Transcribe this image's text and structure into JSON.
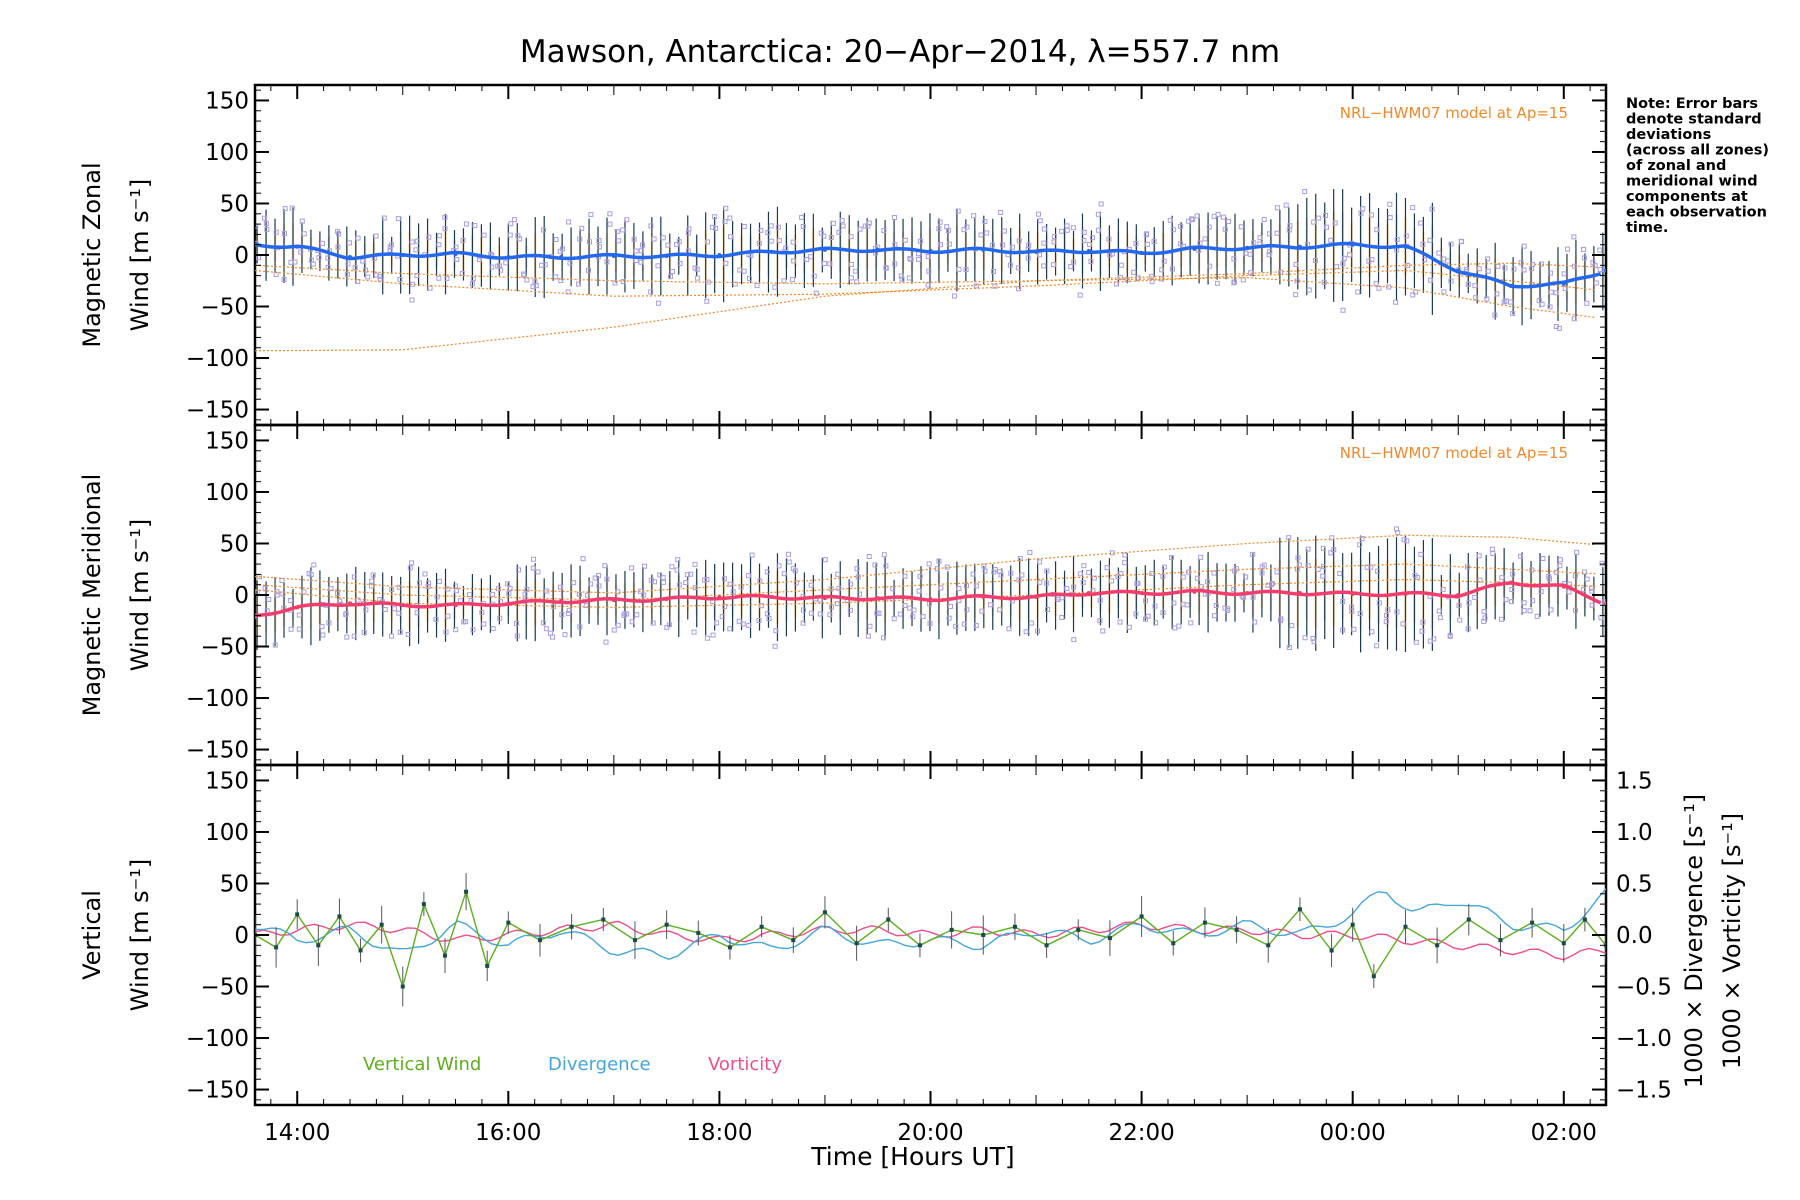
{
  "title": "Mawson, Antarctica: 20−Apr−2014, λ=557.7 nm",
  "note": [
    "Note: Error bars",
    "denote standard",
    "deviations",
    "(across all zones)",
    "of zonal and",
    "meridional wind",
    "components at",
    "each observation",
    "time."
  ],
  "colors": {
    "zonal": "#2468ee",
    "meridional": "#f23d6e",
    "vertical": "#5cae1e",
    "divergence": "#44a6d9",
    "vorticity": "#ee4f8c",
    "model": "#f0892a",
    "scatter": "#a89ee0",
    "errorbar": "#1a3a4a"
  },
  "x_axis": {
    "label": "Time [Hours UT]",
    "range_hours": [
      13.6,
      26.4
    ],
    "ticks": [
      {
        "hour": 14,
        "label": "14:00"
      },
      {
        "hour": 16,
        "label": "16:00"
      },
      {
        "hour": 18,
        "label": "18:00"
      },
      {
        "hour": 20,
        "label": "20:00"
      },
      {
        "hour": 22,
        "label": "22:00"
      },
      {
        "hour": 24,
        "label": "00:00"
      },
      {
        "hour": 26,
        "label": "02:00"
      }
    ]
  },
  "y_ticks": [
    "150",
    "100",
    "50",
    "0",
    "−50",
    "−100",
    "−150"
  ],
  "y_tick_values": [
    150,
    100,
    50,
    0,
    -50,
    -100,
    -150
  ],
  "right_axis": {
    "ticks": [
      "1.5",
      "1.0",
      "0.5",
      "0.0",
      "−0.5",
      "−1.0",
      "−1.5"
    ],
    "tick_values": [
      1.5,
      1.0,
      0.5,
      0.0,
      -0.5,
      -1.0,
      -1.5
    ],
    "divergence_label": "1000 × Divergence [s⁻¹]",
    "vorticity_label": "1000 × Vorticity [s⁻¹]"
  },
  "panels": [
    {
      "key": "zonal",
      "ylabel_top": "Magnetic Zonal",
      "ylabel_bottom": "Wind [m s⁻¹]",
      "model_label": "NRL−HWM07 model at Ap=15"
    },
    {
      "key": "meridional",
      "ylabel_top": "Magnetic Meridional",
      "ylabel_bottom": "Wind [m s⁻¹]",
      "model_label": "NRL−HWM07 model at Ap=15"
    },
    {
      "key": "vertical",
      "ylabel_top": "Vertical",
      "ylabel_bottom": "Wind [m s⁻¹]",
      "model_label": ""
    }
  ],
  "legend": {
    "vertical": "Vertical Wind",
    "divergence": "Divergence",
    "vorticity": "Vorticity"
  },
  "chart_data": [
    {
      "type": "line",
      "panel": "zonal",
      "ylabel": "Magnetic Zonal Wind [m s⁻¹]",
      "ylim": [
        -165,
        165
      ],
      "x_unit": "hours UT",
      "series": [
        {
          "name": "zonal",
          "x": [
            13.6,
            14.0,
            14.5,
            15.0,
            15.5,
            16.0,
            16.5,
            17.0,
            17.5,
            18.0,
            18.5,
            19.0,
            19.5,
            20.0,
            20.5,
            21.0,
            21.5,
            22.0,
            22.5,
            23.0,
            23.5,
            24.0,
            24.5,
            25.0,
            25.5,
            26.0,
            26.4
          ],
          "y": [
            10,
            8,
            -2,
            0,
            1,
            -2,
            -2,
            -1,
            -1,
            0,
            3,
            5,
            5,
            4,
            5,
            3,
            4,
            2,
            6,
            7,
            8,
            10,
            8,
            -15,
            -30,
            -28,
            -15
          ]
        }
      ],
      "model_curves": [
        {
          "x": [
            13.6,
            15.0,
            17.0,
            19.0,
            21.0,
            23.0,
            24.5,
            25.5,
            26.4
          ],
          "y": [
            -93,
            -92,
            -70,
            -40,
            -25,
            -22,
            -32,
            -50,
            -62
          ]
        },
        {
          "x": [
            13.6,
            15.0,
            17.0,
            19.0,
            21.0,
            23.0,
            24.5,
            25.5,
            26.4
          ],
          "y": [
            -15,
            -28,
            -40,
            -38,
            -30,
            -20,
            -15,
            -25,
            -35
          ]
        },
        {
          "x": [
            13.6,
            15.0,
            17.0,
            19.0,
            21.0,
            23.0,
            24.5,
            25.5,
            26.4
          ],
          "y": [
            -10,
            -18,
            -25,
            -28,
            -25,
            -18,
            -10,
            -8,
            -12
          ]
        }
      ]
    },
    {
      "type": "line",
      "panel": "meridional",
      "ylabel": "Magnetic Meridional Wind [m s⁻¹]",
      "ylim": [
        -165,
        165
      ],
      "x_unit": "hours UT",
      "series": [
        {
          "name": "meridional",
          "x": [
            13.6,
            14.0,
            14.5,
            15.0,
            15.5,
            16.0,
            16.5,
            17.0,
            17.5,
            18.0,
            18.5,
            19.0,
            19.5,
            20.0,
            20.5,
            21.0,
            21.5,
            22.0,
            22.5,
            23.0,
            23.5,
            24.0,
            24.5,
            25.0,
            25.5,
            26.0,
            26.4
          ],
          "y": [
            -20,
            -12,
            -8,
            -10,
            -10,
            -8,
            -6,
            -5,
            -4,
            -2,
            -2,
            -3,
            -3,
            -4,
            -2,
            -2,
            2,
            2,
            3,
            2,
            2,
            1,
            1,
            0,
            12,
            8,
            -8
          ]
        }
      ],
      "model_curves": [
        {
          "x": [
            13.6,
            15.0,
            17.0,
            19.0,
            21.0,
            23.0,
            24.5,
            25.5,
            26.4
          ],
          "y": [
            18,
            8,
            2,
            15,
            35,
            50,
            58,
            56,
            48
          ]
        },
        {
          "x": [
            13.6,
            15.0,
            17.0,
            19.0,
            21.0,
            23.0,
            24.5,
            25.5,
            26.4
          ],
          "y": [
            10,
            0,
            -5,
            5,
            15,
            25,
            30,
            25,
            20
          ]
        },
        {
          "x": [
            13.6,
            15.0,
            17.0,
            19.0,
            21.0,
            23.0,
            24.5,
            25.5,
            26.4
          ],
          "y": [
            5,
            -8,
            -12,
            -8,
            0,
            10,
            15,
            12,
            8
          ]
        }
      ]
    },
    {
      "type": "line",
      "panel": "vertical",
      "ylabel": "Vertical Wind [m s⁻¹]",
      "ylim": [
        -165,
        165
      ],
      "y2label": "1000 × Divergence / Vorticity [s⁻¹]",
      "y2lim": [
        -1.65,
        1.65
      ],
      "x_unit": "hours UT",
      "series": [
        {
          "name": "Vertical Wind",
          "axis": "left",
          "x": [
            13.6,
            13.8,
            14.0,
            14.2,
            14.4,
            14.6,
            14.8,
            15.0,
            15.2,
            15.4,
            15.6,
            15.8,
            16.0,
            16.3,
            16.6,
            16.9,
            17.2,
            17.5,
            17.8,
            18.1,
            18.4,
            18.7,
            19.0,
            19.3,
            19.6,
            19.9,
            20.2,
            20.5,
            20.8,
            21.1,
            21.4,
            21.7,
            22.0,
            22.3,
            22.6,
            22.9,
            23.2,
            23.5,
            23.8,
            24.0,
            24.2,
            24.5,
            24.8,
            25.1,
            25.4,
            25.7,
            26.0,
            26.2,
            26.4
          ],
          "y": [
            0,
            -12,
            20,
            -10,
            18,
            -15,
            10,
            -50,
            30,
            -20,
            42,
            -30,
            12,
            -5,
            8,
            15,
            -5,
            10,
            2,
            -12,
            8,
            -5,
            22,
            -8,
            15,
            -10,
            5,
            0,
            8,
            -10,
            5,
            -3,
            18,
            -8,
            12,
            5,
            -10,
            25,
            -15,
            10,
            -40,
            8,
            -10,
            15,
            -5,
            12,
            -8,
            15,
            -10
          ]
        },
        {
          "name": "Divergence",
          "axis": "right",
          "x": [
            13.6,
            14.0,
            14.5,
            15.0,
            15.5,
            16.0,
            16.5,
            17.0,
            17.5,
            18.0,
            18.5,
            19.0,
            19.5,
            20.0,
            20.5,
            21.0,
            21.5,
            22.0,
            22.5,
            23.0,
            23.5,
            24.0,
            24.3,
            24.6,
            25.0,
            25.5,
            26.0,
            26.4
          ],
          "y": [
            0.1,
            -0.05,
            0.05,
            -0.2,
            0.1,
            -0.1,
            0.05,
            -0.15,
            -0.2,
            0.0,
            -0.15,
            0.05,
            -0.1,
            -0.05,
            -0.1,
            0.05,
            -0.05,
            0.1,
            0.0,
            0.1,
            0.0,
            0.2,
            0.45,
            0.2,
            0.35,
            0.1,
            0.05,
            0.4
          ]
        },
        {
          "name": "Vorticity",
          "axis": "right",
          "x": [
            13.6,
            14.0,
            14.5,
            15.0,
            15.5,
            16.0,
            16.5,
            17.0,
            17.5,
            18.0,
            18.5,
            19.0,
            19.5,
            20.0,
            20.5,
            21.0,
            21.5,
            22.0,
            22.5,
            23.0,
            23.5,
            24.0,
            24.5,
            25.0,
            25.5,
            26.0,
            26.4
          ],
          "y": [
            0.0,
            0.05,
            0.1,
            0.05,
            -0.05,
            0.0,
            0.05,
            0.1,
            0.0,
            -0.05,
            0.0,
            0.05,
            0.05,
            0.0,
            0.05,
            0.0,
            0.05,
            0.1,
            0.05,
            0.05,
            0.0,
            0.0,
            -0.05,
            -0.1,
            -0.15,
            -0.2,
            -0.15
          ]
        }
      ]
    }
  ]
}
